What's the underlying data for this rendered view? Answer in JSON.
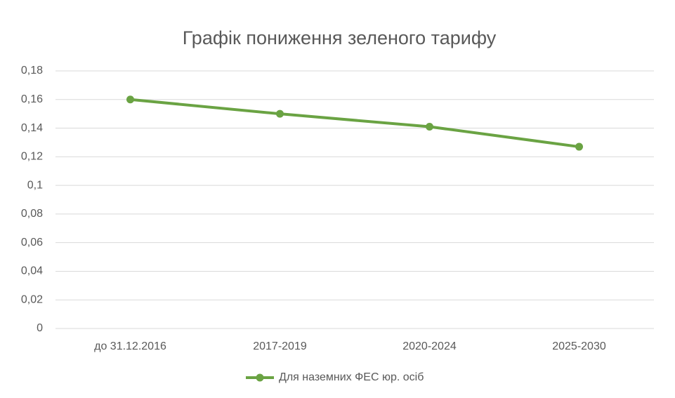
{
  "chart_data": {
    "type": "line",
    "title": "Графік пониження зеленого тарифу",
    "categories": [
      "до 31.12.2016",
      "2017-2019",
      "2020-2024",
      "2025-2030"
    ],
    "series": [
      {
        "name": "Для наземних ФЕС юр. осіб",
        "color": "#6aa343",
        "values": [
          0.16,
          0.15,
          0.141,
          0.127
        ]
      }
    ],
    "ylim": [
      0,
      0.18
    ],
    "yticks": [
      0,
      {
        "value": 0.02,
        "label": "0,02"
      },
      {
        "value": 0.04,
        "label": "0,04"
      },
      {
        "value": 0.06,
        "label": "0,06"
      },
      {
        "value": 0.08,
        "label": "0,08"
      },
      {
        "value": 0.1,
        "label": "0,1"
      },
      {
        "value": 0.12,
        "label": "0,12"
      },
      {
        "value": 0.14,
        "label": "0,14"
      },
      {
        "value": 0.16,
        "label": "0,16"
      },
      {
        "value": 0.18,
        "label": "0,18"
      }
    ],
    "grid": true,
    "legend": "bottom"
  }
}
